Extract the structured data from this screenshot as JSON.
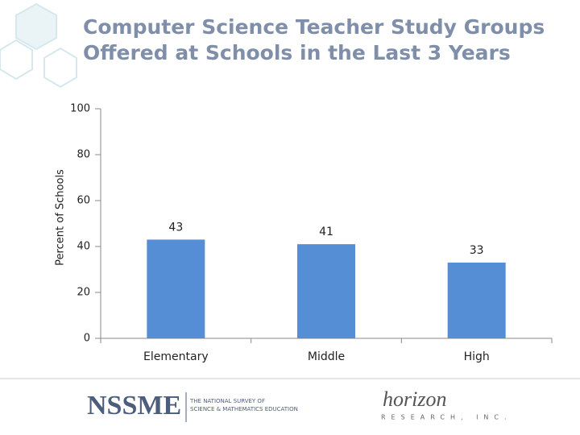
{
  "chart_data": {
    "type": "bar",
    "title": "Computer Science Teacher Study Groups Offered at Schools in the Last 3 Years",
    "y_label": "Percent of Schools",
    "categories": [
      "Elementary",
      "Middle",
      "High"
    ],
    "values": [
      43,
      41,
      33
    ],
    "color": "#558ed5",
    "ylim": [
      0,
      100
    ],
    "yticks": [
      0,
      20,
      40,
      60,
      80,
      100
    ],
    "grid": false
  },
  "footer": {
    "logo": "NSSME",
    "survey_line1": "THE NATIONAL SURVEY OF",
    "survey_line2": "SCIENCE & MATHEMATICS EDUCATION",
    "partner": "horizon",
    "partner_sub": "RESEARCH, INC."
  }
}
